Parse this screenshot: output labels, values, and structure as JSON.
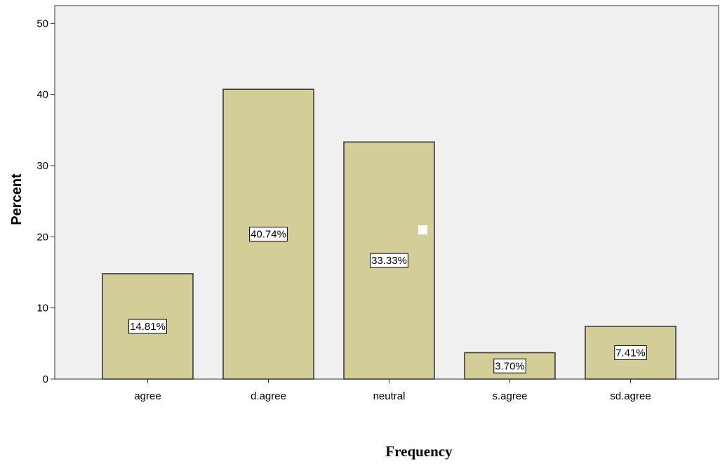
{
  "chart_data": {
    "type": "bar",
    "categories": [
      "agree",
      "d.agree",
      "neutral",
      "s.agree",
      "sd.agree"
    ],
    "values": [
      14.81,
      40.74,
      33.33,
      3.7,
      7.41
    ],
    "data_labels": [
      "14.81%",
      "40.74%",
      "33.33%",
      "3.70%",
      "7.41%"
    ],
    "xlabel": "Frequency",
    "ylabel": "Percent",
    "ylim": [
      0,
      52.5
    ],
    "yticks": [
      0,
      10,
      20,
      30,
      40,
      50
    ],
    "grid": false,
    "colors": {
      "bar_fill": "#D3CE97",
      "bar_stroke": "#333333",
      "plot_background": "#F0F0F0"
    }
  }
}
